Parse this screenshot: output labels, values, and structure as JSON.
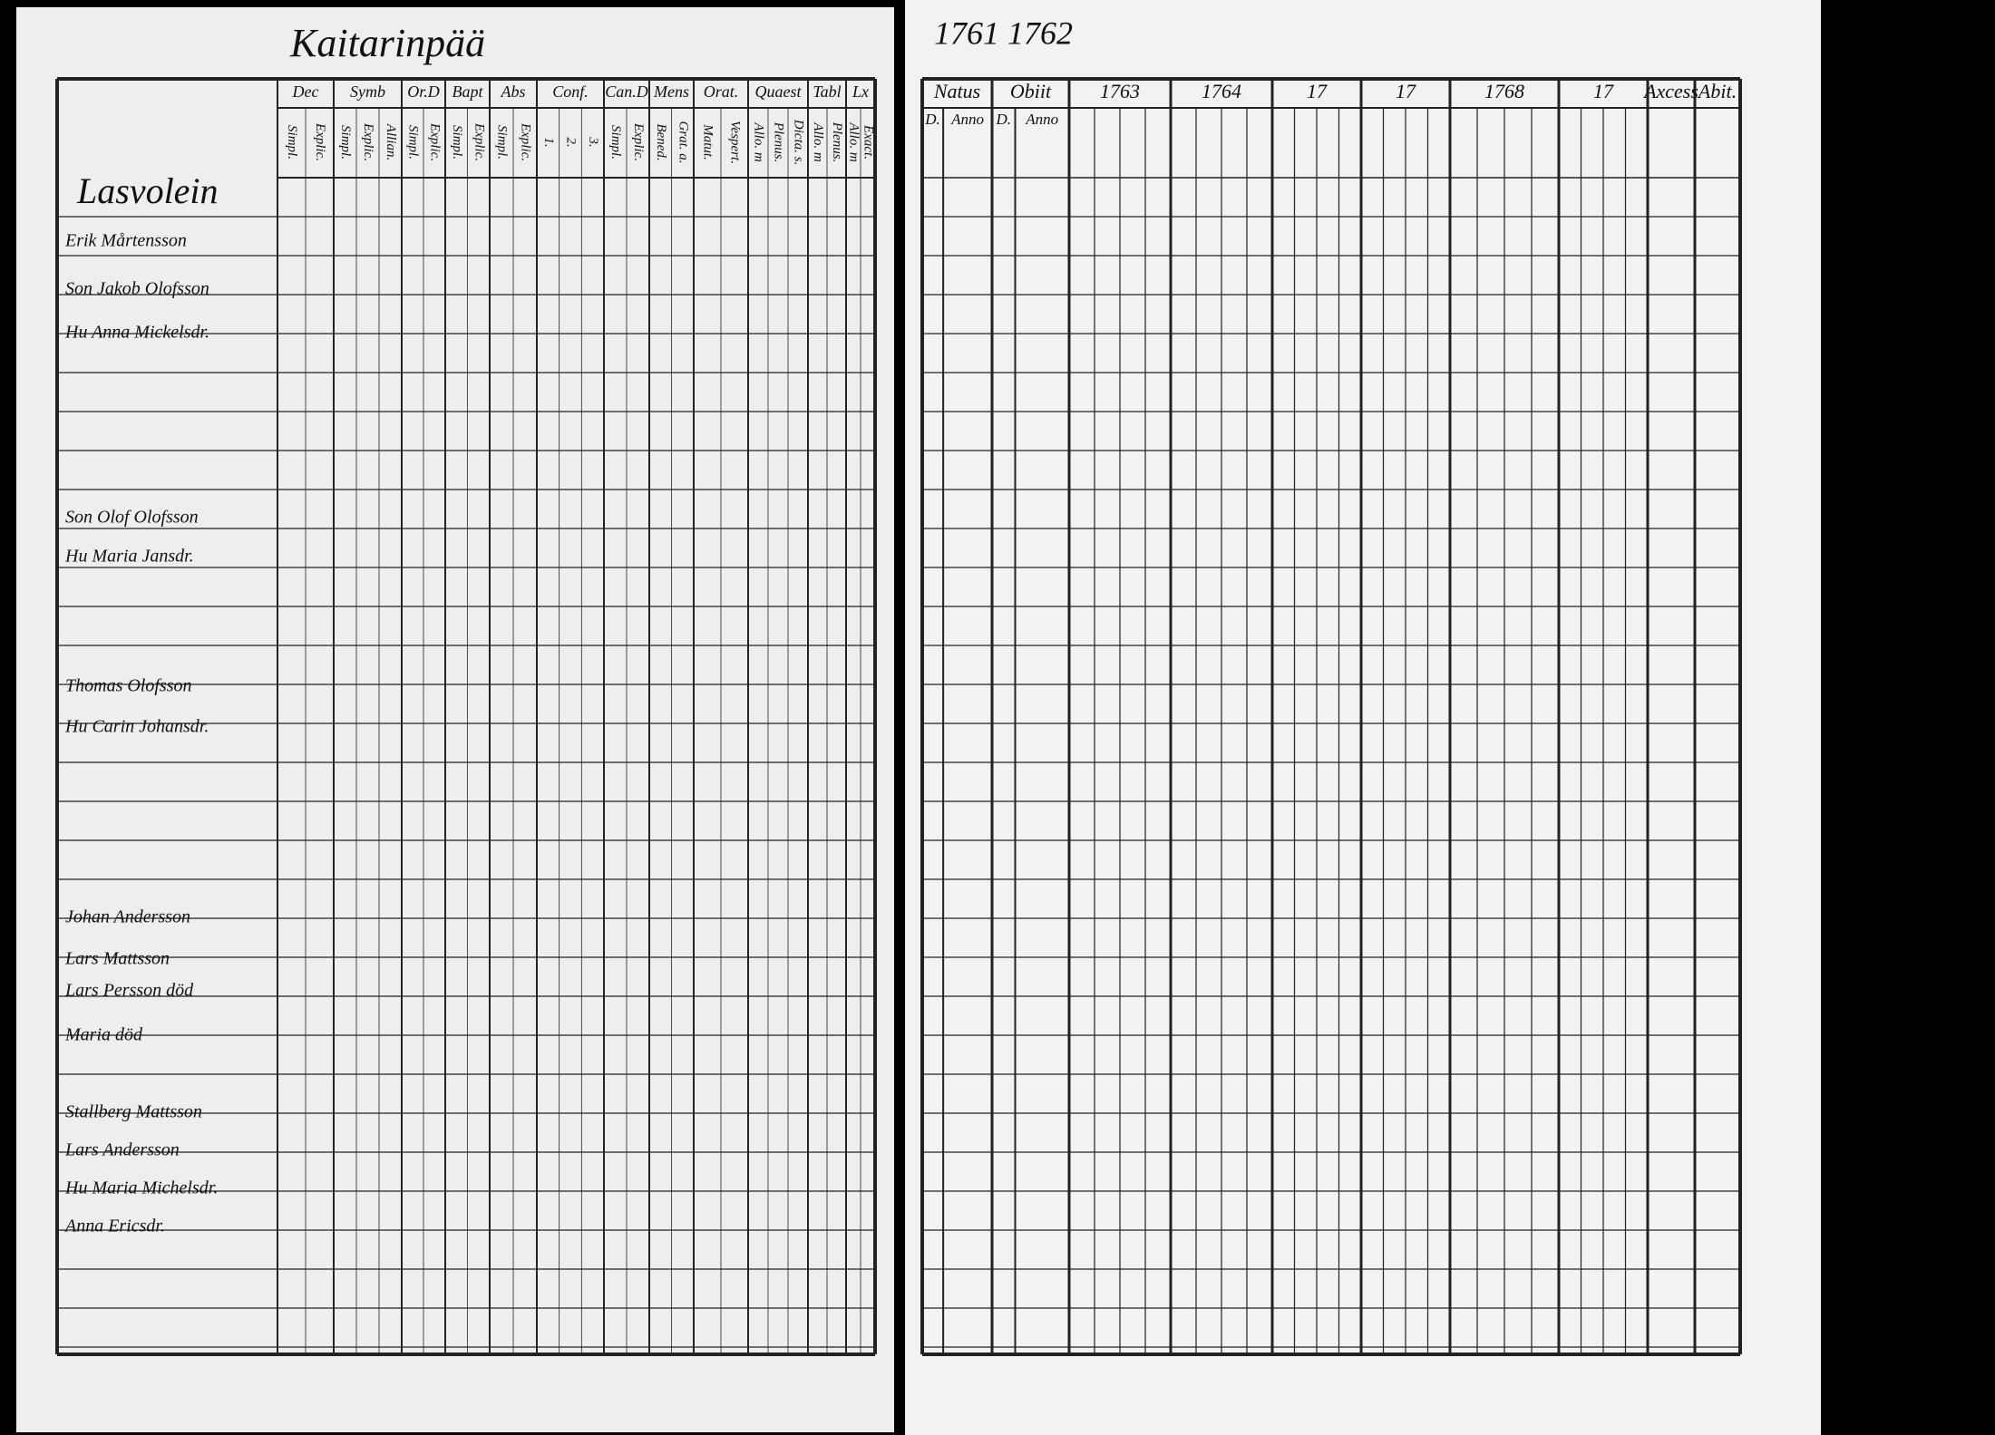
{
  "header": {
    "title": "Kaitarinpää",
    "years": "1761 1762"
  },
  "left_page": {
    "section": "Lasvolein",
    "columns": [
      {
        "label": "Dec",
        "sub": [
          "Simpl.",
          "Explic."
        ]
      },
      {
        "label": "Symb",
        "sub": [
          "Simpl.",
          "Explic.",
          "Allian."
        ]
      },
      {
        "label": "Or.D",
        "sub": [
          "Simpl.",
          "Explic."
        ]
      },
      {
        "label": "Bapt",
        "sub": [
          "Simpl.",
          "Explic."
        ]
      },
      {
        "label": "Abs",
        "sub": [
          "Simpl.",
          "Explic."
        ]
      },
      {
        "label": "Conf.",
        "sub": [
          "1.",
          "2.",
          "3."
        ]
      },
      {
        "label": "Can.D",
        "sub": [
          "Simpl.",
          "Explic."
        ]
      },
      {
        "label": "Mens",
        "sub": [
          "Bened.",
          "Grat. a."
        ]
      },
      {
        "label": "Orat.",
        "sub": [
          "Matut.",
          "Vespert."
        ]
      },
      {
        "label": "Quaest",
        "sub": [
          "Allo. m",
          "Plenus.",
          "Dicta. s."
        ]
      },
      {
        "label": "Tabl",
        "sub": [
          "Allo. m",
          "Plenus."
        ]
      },
      {
        "label": "Lx",
        "sub": [
          "Allo. m",
          "Exact."
        ]
      }
    ],
    "rows": [
      "Erik Mårtensson",
      "Son Jakob Olofsson",
      "Hu Anna Mickelsdr.",
      "Son Olof Olofsson",
      "Hu Maria Jansdr.",
      "Thomas Olofsson",
      "Hu Carin Johansdr.",
      "Johan Andersson",
      "Lars Mattsson",
      "Lars Persson död",
      "Maria död",
      "Stallberg Mattsson",
      "Lars Andersson",
      "Hu Maria Michelsdr.",
      "Anna Ericsdr."
    ]
  },
  "right_page": {
    "columns": [
      {
        "label": "Natus",
        "sub": [
          "D.",
          "Anno"
        ]
      },
      {
        "label": "Obiit",
        "sub": [
          "D.",
          "Anno"
        ]
      },
      {
        "label": "1763",
        "sub": []
      },
      {
        "label": "1764",
        "sub": []
      },
      {
        "label": "17",
        "sub": []
      },
      {
        "label": "17",
        "sub": []
      },
      {
        "label": "1768",
        "sub": []
      },
      {
        "label": "17",
        "sub": []
      },
      {
        "label": "Axcess",
        "sub": []
      },
      {
        "label": "Abit.",
        "sub": []
      }
    ]
  }
}
